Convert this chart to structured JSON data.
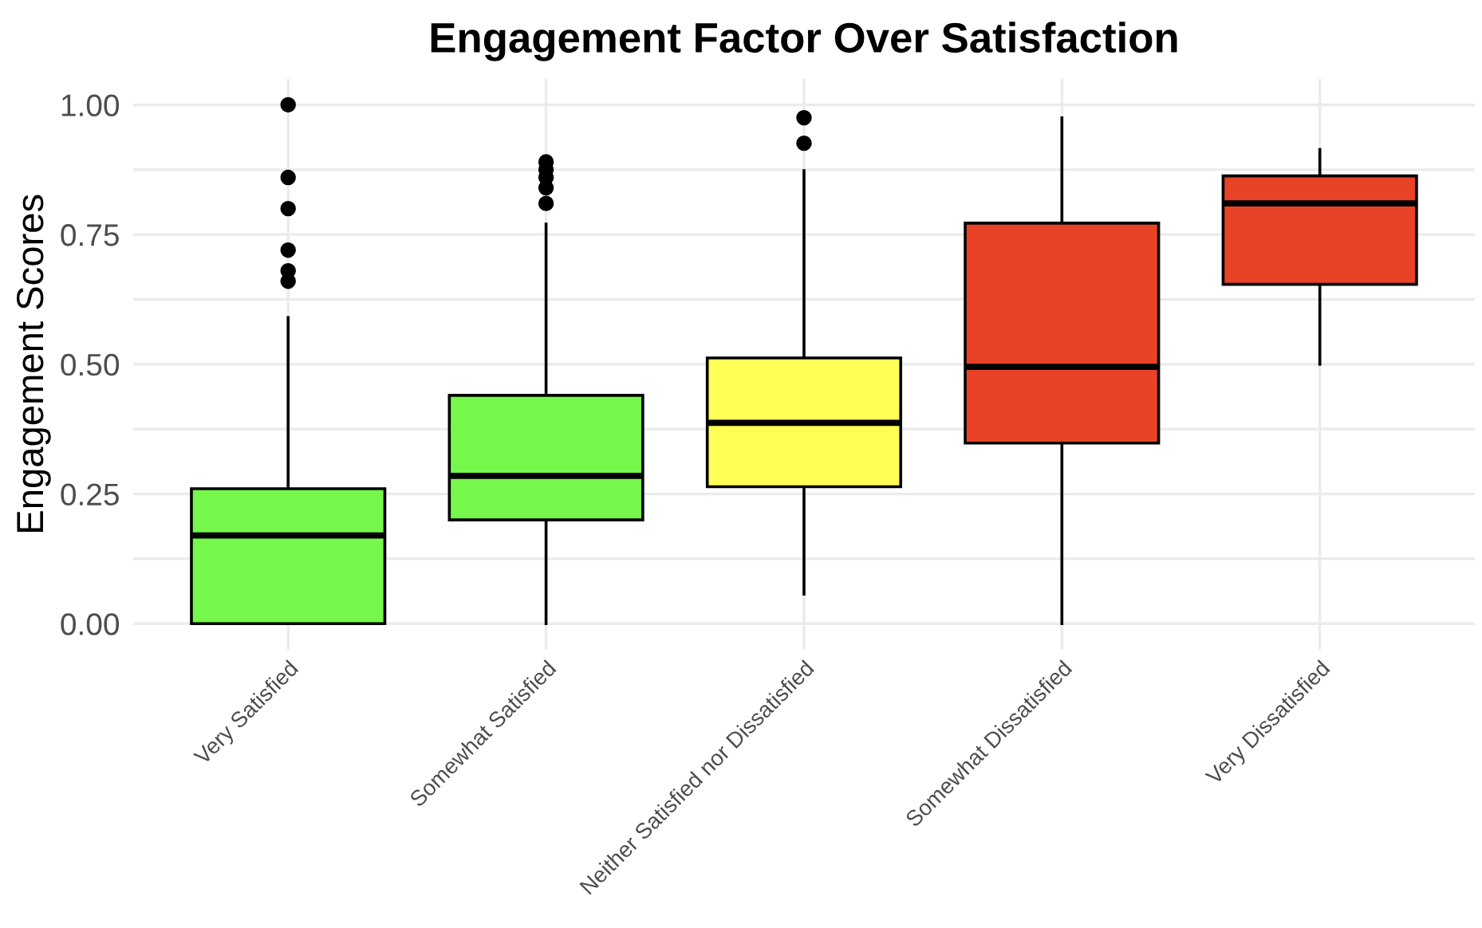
{
  "chart_data": {
    "type": "box",
    "title": "Engagement Factor Over Satisfaction",
    "ylabel": "Engagement Scores",
    "categories": [
      "Very Satisfied",
      "Somewhat Satisfied",
      "Neither Satisfied nor Dissatisfied",
      "Somewhat Dissatisfied",
      "Very Dissatisfied"
    ],
    "colors": [
      "#75f74b",
      "#75f74b",
      "#ffff55",
      "#e84327",
      "#e84327"
    ],
    "boxes": [
      {
        "low": 0,
        "q1": 0,
        "median": 0.17,
        "q3": 0.26,
        "high": 0.59,
        "outliers": [
          1.0,
          0.86,
          0.8,
          0.72,
          0.68,
          0.66
        ]
      },
      {
        "low": 0,
        "q1": 0.2,
        "median": 0.285,
        "q3": 0.44,
        "high": 0.77,
        "outliers": [
          0.89,
          0.875,
          0.86,
          0.84,
          0.81
        ]
      },
      {
        "low": 0.057,
        "q1": 0.264,
        "median": 0.387,
        "q3": 0.512,
        "high": 0.873,
        "outliers": [
          0.975,
          0.926
        ]
      },
      {
        "low": 0,
        "q1": 0.348,
        "median": 0.495,
        "q3": 0.772,
        "high": 0.975
      },
      {
        "low": 0.5,
        "q1": 0.654,
        "median": 0.81,
        "q3": 0.863,
        "high": 0.914
      }
    ],
    "ylim": [
      -0.05,
      1.05
    ],
    "yticks": [
      {
        "value": 0,
        "label": "0.00"
      },
      {
        "value": 0.125,
        "label": null
      },
      {
        "value": 0.25,
        "label": "0.25"
      },
      {
        "value": 0.375,
        "label": null
      },
      {
        "value": 0.5,
        "label": "0.50"
      },
      {
        "value": 0.625,
        "label": null
      },
      {
        "value": 0.75,
        "label": "0.75"
      },
      {
        "value": 0.875,
        "label": null
      },
      {
        "value": 1,
        "label": "1.00"
      }
    ],
    "grid": true
  }
}
